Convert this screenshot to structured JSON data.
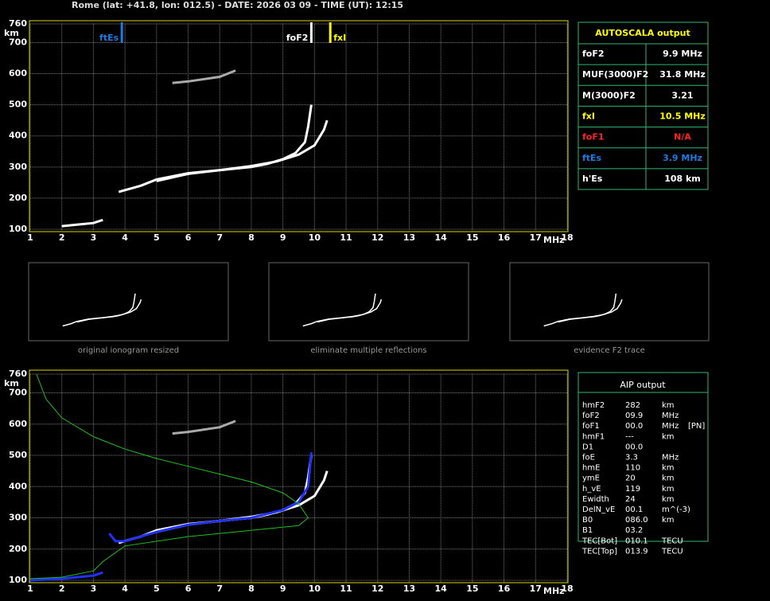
{
  "header": "Rome (lat: +41.8, lon: 012.5) - DATE: 2026 03 09 - TIME (UT): 12:15",
  "ionogram_top": {
    "y_unit": "km",
    "x_unit": "MHz",
    "xlim": [
      1,
      18
    ],
    "ylim": [
      100,
      760
    ],
    "xticks": [
      1,
      2,
      3,
      4,
      5,
      6,
      7,
      8,
      9,
      10,
      11,
      12,
      13,
      14,
      15,
      16,
      17,
      18
    ],
    "yticks": [
      100,
      200,
      300,
      400,
      500,
      600,
      700,
      760
    ],
    "grid": true,
    "markers": [
      {
        "label": "ftEs",
        "value": 3.9,
        "color": "#1e7be0",
        "side": "left"
      },
      {
        "label": "foF2",
        "value": 9.9,
        "color": "#ffffff",
        "side": "left"
      },
      {
        "label": "fxI",
        "value": 10.5,
        "color": "#ffff00",
        "side": "right"
      }
    ],
    "traces": [
      {
        "color": "#ffffff",
        "x": [
          3.8,
          4.5,
          5,
          6,
          7,
          8,
          8.5,
          9,
          9.4,
          9.7,
          9.8,
          9.9
        ],
        "y": [
          220,
          240,
          260,
          280,
          290,
          300,
          310,
          325,
          345,
          380,
          430,
          500
        ]
      },
      {
        "color": "#ffffff",
        "x": [
          5,
          6,
          7,
          8,
          8.8,
          9.5,
          10,
          10.3,
          10.4
        ],
        "y": [
          255,
          278,
          290,
          303,
          318,
          340,
          370,
          420,
          450
        ]
      },
      {
        "color": "#ffffff",
        "x": [
          2,
          2.5,
          3,
          3.3
        ],
        "y": [
          110,
          115,
          120,
          130
        ]
      },
      {
        "color": "#aaaaaa",
        "x": [
          5.5,
          6,
          7,
          7.5
        ],
        "y": [
          570,
          575,
          590,
          610
        ]
      }
    ]
  },
  "autoscala": {
    "title": "AUTOSCALA output",
    "rows": [
      {
        "name": "foF2",
        "value": "9.9 MHz",
        "color": "#ffffff"
      },
      {
        "name": "MUF(3000)F2",
        "value": "31.8 MHz",
        "color": "#ffffff"
      },
      {
        "name": "M(3000)F2",
        "value": "3.21",
        "color": "#ffffff"
      },
      {
        "name": "fxI",
        "value": "10.5 MHz",
        "color": "#ffff00"
      },
      {
        "name": "foF1",
        "value": "N/A",
        "color": "#ff2020"
      },
      {
        "name": "ftEs",
        "value": "3.9 MHz",
        "color": "#1e7be0"
      },
      {
        "name": "h'Es",
        "value": "108    km",
        "color": "#ffffff"
      }
    ]
  },
  "thumbnails": [
    "original ionogram resized",
    "eliminate multiple reflections",
    "evidence F2 trace"
  ],
  "ionogram_bottom": {
    "y_unit": "km",
    "x_unit": "MHz",
    "xlim": [
      1,
      18
    ],
    "ylim": [
      100,
      760
    ],
    "xticks": [
      1,
      2,
      3,
      4,
      5,
      6,
      7,
      8,
      9,
      10,
      11,
      12,
      13,
      14,
      15,
      16,
      17,
      18
    ],
    "yticks": [
      100,
      200,
      300,
      400,
      500,
      600,
      700,
      760
    ],
    "grid": true,
    "traces": [
      {
        "color": "#ffffff",
        "x": [
          3.8,
          4.5,
          5,
          6,
          7,
          8,
          8.5,
          9,
          9.4,
          9.7,
          9.8,
          9.9
        ],
        "y": [
          220,
          240,
          260,
          280,
          290,
          300,
          310,
          325,
          345,
          380,
          430,
          500
        ]
      },
      {
        "color": "#ffffff",
        "x": [
          5,
          6,
          7,
          8,
          8.8,
          9.5,
          10,
          10.3,
          10.4
        ],
        "y": [
          255,
          278,
          290,
          303,
          318,
          340,
          370,
          420,
          450
        ]
      },
      {
        "color": "#aaaaaa",
        "x": [
          5.5,
          6,
          7,
          7.5
        ],
        "y": [
          570,
          575,
          590,
          610
        ]
      },
      {
        "color": "#2030ff",
        "x": [
          3.5,
          3.7,
          4,
          5,
          6,
          7,
          8,
          9,
          9.5,
          9.8,
          9.9
        ],
        "y": [
          250,
          225,
          225,
          255,
          278,
          290,
          300,
          325,
          350,
          400,
          510
        ]
      },
      {
        "color": "#2030ff",
        "x": [
          1,
          2,
          3,
          3.3
        ],
        "y": [
          100,
          105,
          115,
          125
        ]
      },
      {
        "color": "#20c020",
        "x": [
          1.2,
          1.5,
          2,
          3,
          4,
          5,
          6,
          7,
          8,
          9,
          9.5,
          9.8,
          9.5,
          8,
          6,
          4,
          3.3,
          3,
          2,
          1
        ],
        "y": [
          760,
          680,
          620,
          560,
          520,
          490,
          465,
          440,
          415,
          380,
          345,
          300,
          275,
          260,
          240,
          210,
          160,
          130,
          110,
          105
        ]
      }
    ]
  },
  "aip": {
    "title": "AIP output",
    "rows": [
      [
        "hmF2",
        "282",
        "km"
      ],
      [
        "foF2",
        "09.9",
        "MHz"
      ],
      [
        "foF1",
        "00.0",
        "MHz",
        "[PN]"
      ],
      [
        "hmF1",
        "---",
        "km"
      ],
      [
        "D1",
        "00.0"
      ],
      [
        "foE",
        "3.3",
        "MHz"
      ],
      [
        "hmE",
        "110",
        "km"
      ],
      [
        "ymE",
        "20",
        "km"
      ],
      [
        "h_vE",
        "119",
        "km"
      ],
      [
        "Ewidth",
        "24",
        "km"
      ],
      [
        "DelN_vE",
        "00.1",
        "m^(-3)"
      ],
      [
        "B0",
        "086.0",
        "km"
      ],
      [
        "B1",
        "03.2"
      ],
      [
        "TEC[Bot]",
        "010.1",
        "TECU"
      ],
      [
        "TEC[Top]",
        "013.9",
        "TECU"
      ]
    ]
  }
}
